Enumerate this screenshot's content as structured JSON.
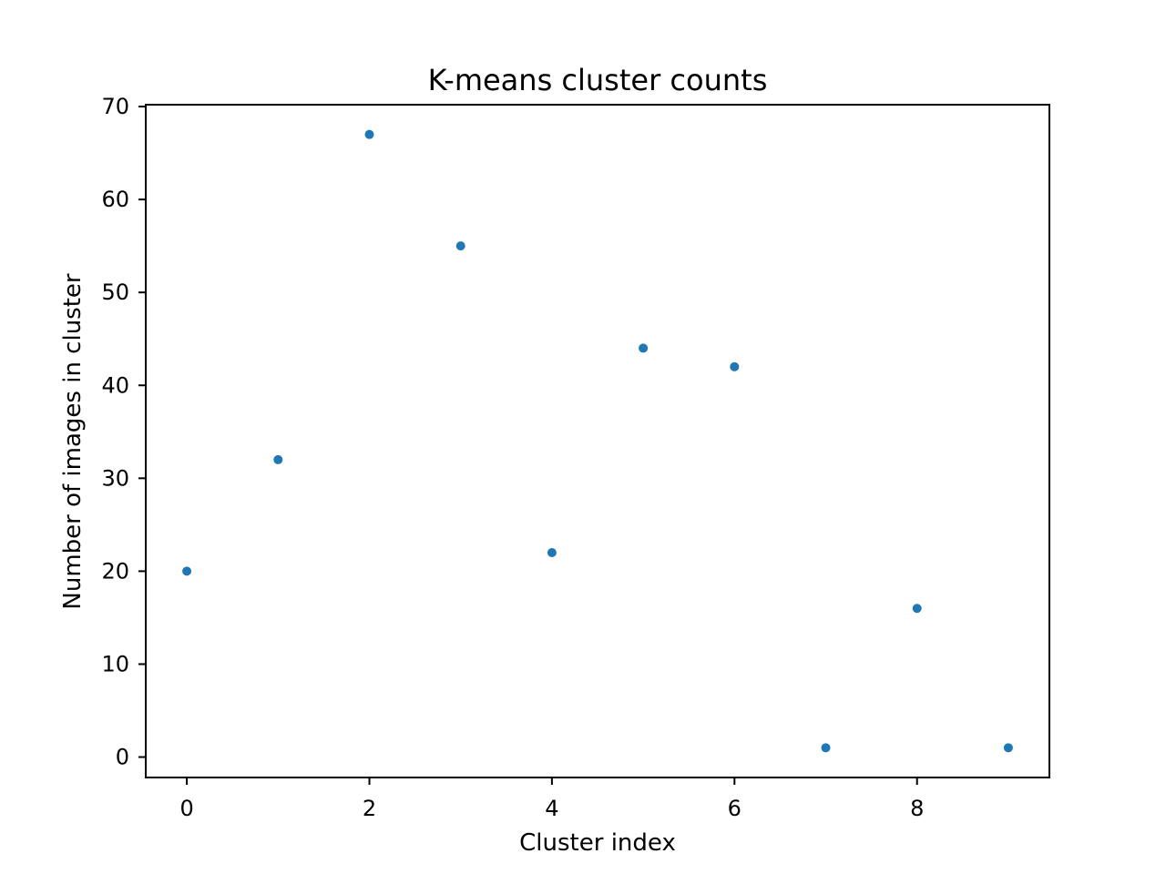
{
  "chart_data": {
    "type": "scatter",
    "title": "K-means cluster counts",
    "xlabel": "Cluster index",
    "ylabel": "Number of images in cluster",
    "x": [
      0,
      1,
      2,
      3,
      4,
      5,
      6,
      7,
      8,
      9
    ],
    "y": [
      20,
      32,
      67,
      55,
      22,
      44,
      42,
      1,
      16,
      1
    ],
    "xlim": [
      -0.45,
      9.45
    ],
    "ylim": [
      -2.2,
      70.2
    ],
    "xticks": [
      0,
      2,
      4,
      6,
      8
    ],
    "yticks": [
      0,
      10,
      20,
      30,
      40,
      50,
      60,
      70
    ],
    "grid": false,
    "legend": "none",
    "marker_color": "#1f77b4"
  }
}
